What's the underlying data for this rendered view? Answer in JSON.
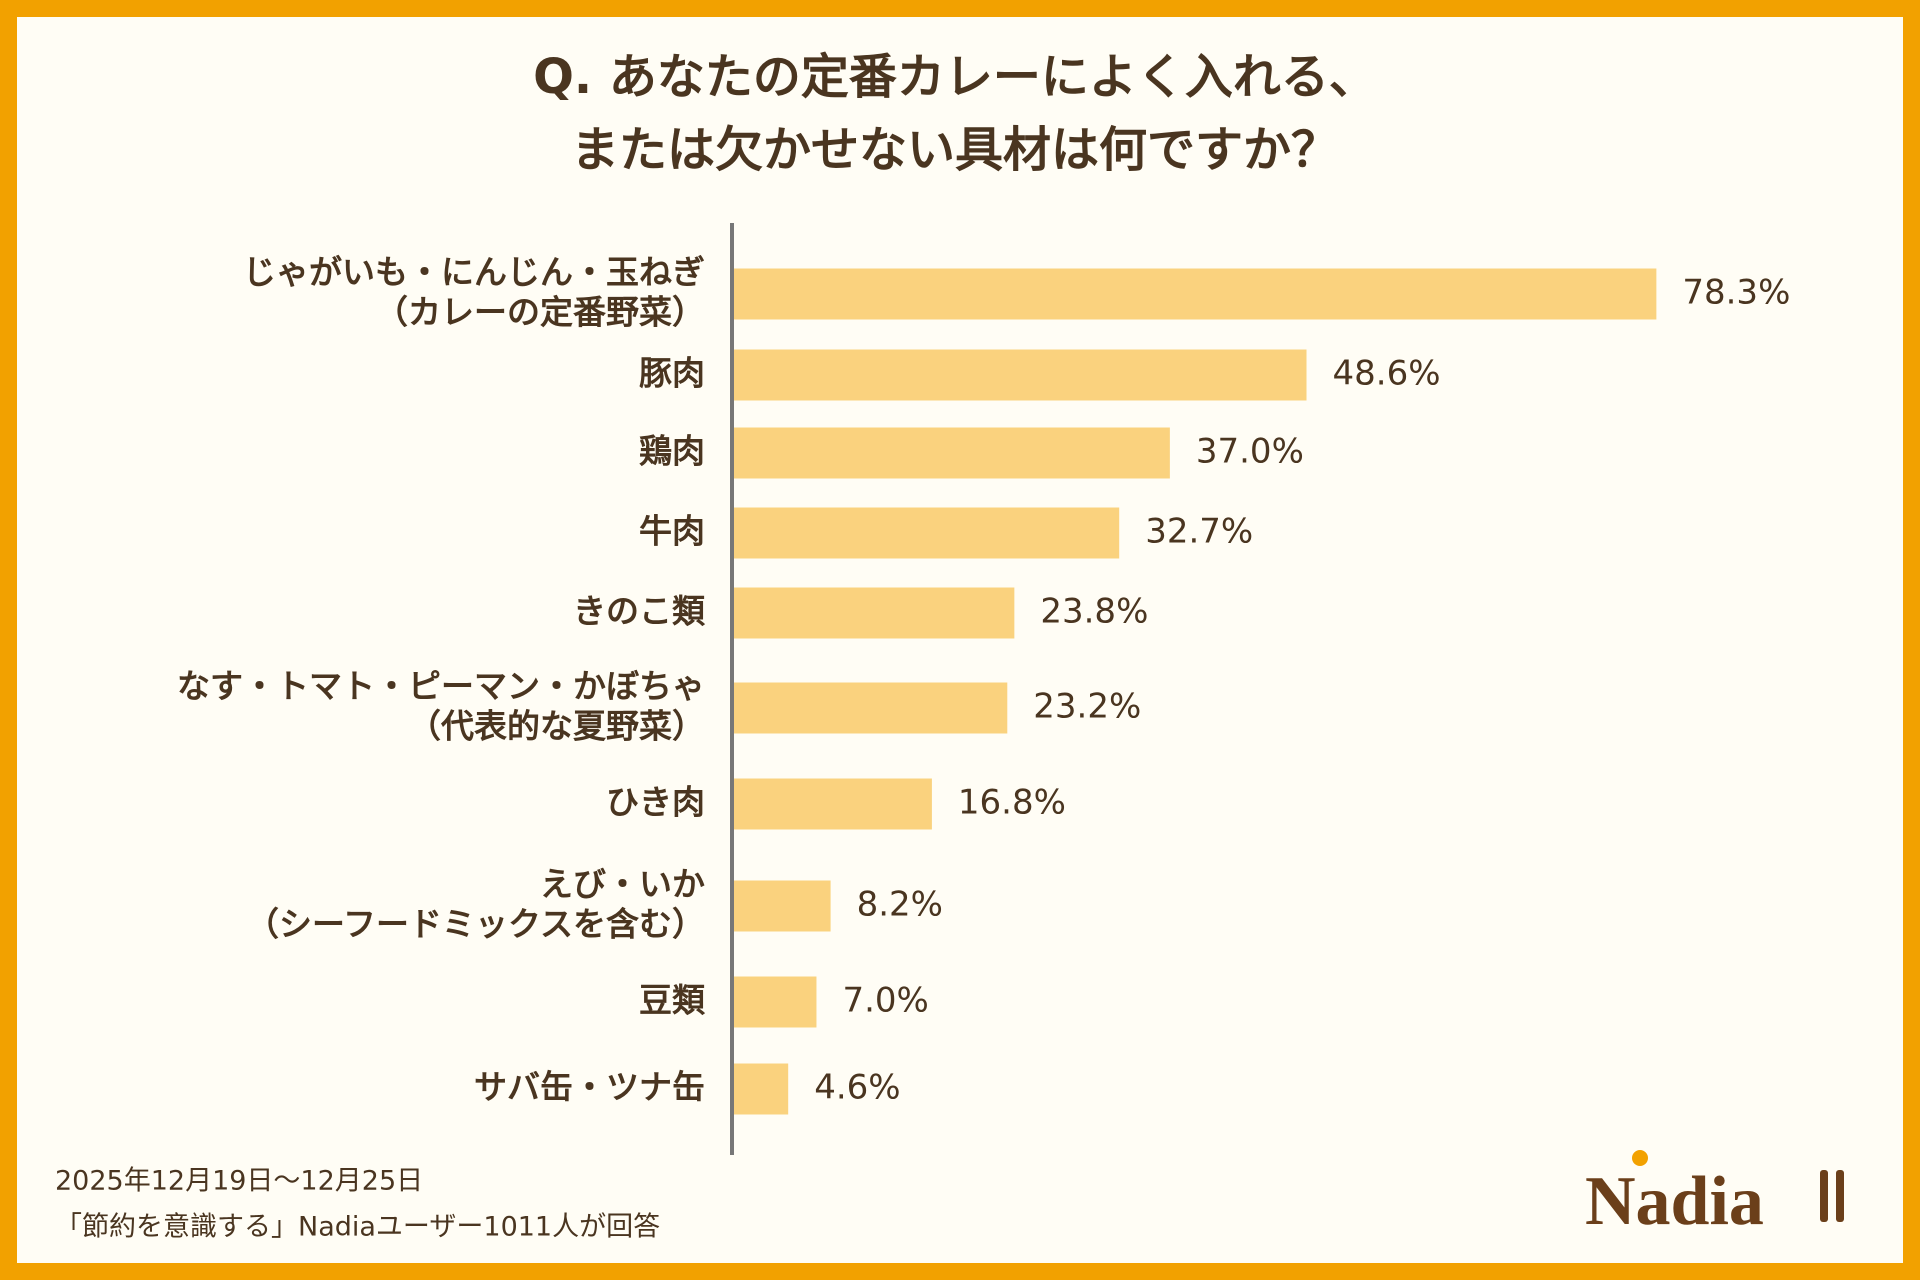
{
  "chart_data": {
    "type": "bar",
    "orientation": "horizontal",
    "title": [
      "Q. あなたの定番カレーによく入れる、",
      "または欠かせない具材は何ですか？"
    ],
    "categories": [
      [
        "じゃがいも・にんじん・玉ねぎ",
        "（カレーの定番野菜）"
      ],
      [
        "豚肉"
      ],
      [
        "鶏肉"
      ],
      [
        "牛肉"
      ],
      [
        "きのこ類"
      ],
      [
        "なす・トマト・ピーマン・かぼちゃ",
        "（代表的な夏野菜）"
      ],
      [
        "ひき肉"
      ],
      [
        "えび・いか",
        "（シーフードミックスを含む）"
      ],
      [
        "豆類"
      ],
      [
        "サバ缶・ツナ缶"
      ]
    ],
    "values": [
      78.3,
      48.6,
      37.0,
      32.7,
      23.8,
      23.2,
      16.8,
      8.2,
      7.0,
      4.6
    ],
    "value_labels": [
      "78.3%",
      "48.6%",
      "37.0%",
      "32.7%",
      "23.8%",
      "23.2%",
      "16.8%",
      "8.2%",
      "7.0%",
      "4.6%"
    ],
    "color": "#FAD27E",
    "xlim": [
      0,
      100
    ],
    "notes": [
      "2025年12月19日〜12月25日",
      "「節約を意識する」Nadiaユーザー1011人が回答"
    ],
    "logo": "Nadia"
  }
}
